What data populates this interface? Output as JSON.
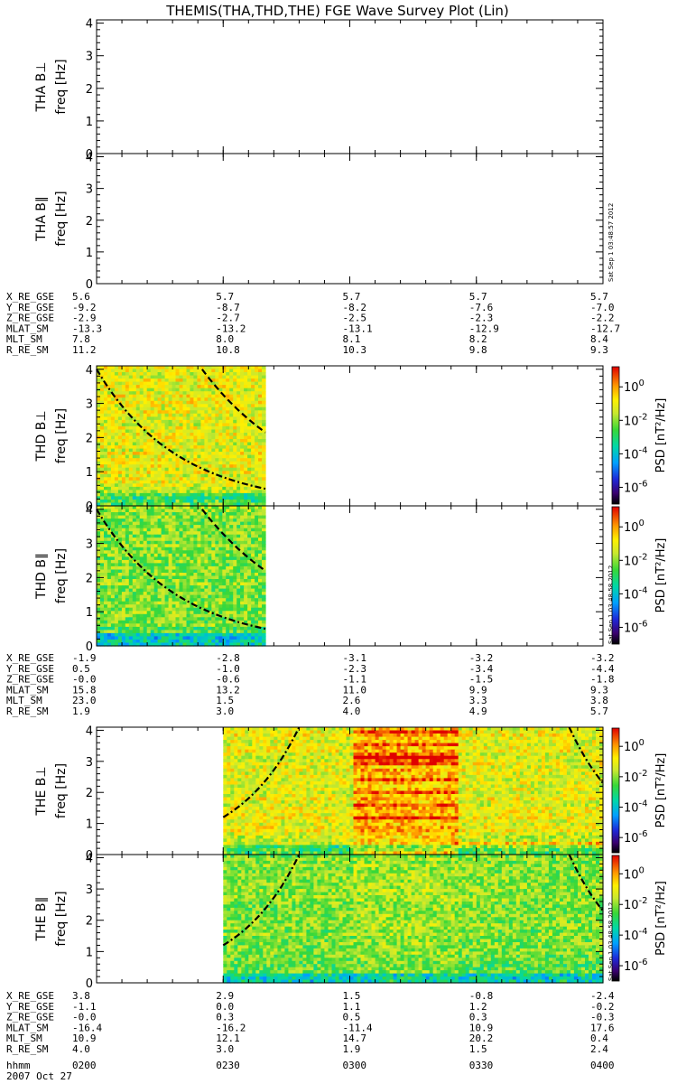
{
  "chart_data": {
    "type": "heatmap",
    "title": "THEMIS(THA,THD,THE) FGE Wave Survey Plot (Lin)",
    "date": "2007 Oct 27",
    "time_axis": {
      "label": "hhmm",
      "ticks": [
        "0200",
        "0230",
        "0300",
        "0330",
        "0400"
      ],
      "minor_ticks_per_major": 5
    },
    "freq_axis": {
      "label": "freq [Hz]",
      "range": [
        0,
        4.1
      ],
      "ticks": [
        "0",
        "1",
        "2",
        "3",
        "4"
      ]
    },
    "colorbar": {
      "label": "PSD [nT²/Hz]",
      "scale": "log",
      "ticks": [
        {
          "base": "10",
          "exp": "0",
          "value": 1.0
        },
        {
          "base": "10",
          "exp": "-2",
          "value": 0.01
        },
        {
          "base": "10",
          "exp": "-4",
          "value": 0.0001
        },
        {
          "base": "10",
          "exp": "-6",
          "value": 1e-06
        }
      ]
    },
    "panels": [
      {
        "id": "tha-bperp",
        "probe_label": "THA B⊥",
        "has_data": false,
        "has_colorbar": false
      },
      {
        "id": "tha-bpar",
        "probe_label": "THA B∥",
        "has_data": false,
        "has_colorbar": false,
        "stamp": "Sat Sep  1 03:48:57 2012"
      },
      {
        "id": "thd-bperp",
        "probe_label": "THD B⊥",
        "has_data": true,
        "has_colorbar": true,
        "data_interval": [
          "0200",
          "0240"
        ],
        "background_level": "high",
        "curves": [
          {
            "style": "dash-dot",
            "x": [
              "0200",
              "0240"
            ],
            "freq": [
              4.0,
              0.5
            ]
          },
          {
            "style": "dashed",
            "x": [
              "0225",
              "0240"
            ],
            "freq": [
              4.0,
              2.15
            ]
          }
        ]
      },
      {
        "id": "thd-bpar",
        "probe_label": "THD B∥",
        "has_data": true,
        "has_colorbar": true,
        "data_interval": [
          "0200",
          "0240"
        ],
        "background_level": "medium",
        "stamp": "Sat Sep  1 03:48:58 2012",
        "curves": [
          {
            "style": "dash-dot",
            "x": [
              "0200",
              "0240"
            ],
            "freq": [
              4.0,
              0.5
            ]
          },
          {
            "style": "dashed",
            "x": [
              "0225",
              "0240"
            ],
            "freq": [
              4.0,
              2.2
            ]
          }
        ]
      },
      {
        "id": "the-bperp",
        "probe_label": "THE B⊥",
        "has_data": true,
        "has_colorbar": true,
        "data_interval": [
          "0230",
          "0400"
        ],
        "background_level": "high",
        "curves": [
          {
            "style": "dash-dot",
            "x": [
              "0230",
              "0248"
            ],
            "freq": [
              1.2,
              4.1
            ]
          },
          {
            "style": "dash-dot",
            "x": [
              "0352",
              "0400"
            ],
            "freq": [
              4.1,
              2.3
            ]
          }
        ]
      },
      {
        "id": "the-bpar",
        "probe_label": "THE B∥",
        "has_data": true,
        "has_colorbar": true,
        "data_interval": [
          "0230",
          "0400"
        ],
        "background_level": "medium",
        "stamp": "Sat Sep  1 03:48:58 2012",
        "curves": [
          {
            "style": "dash-dot",
            "x": [
              "0230",
              "0248"
            ],
            "freq": [
              1.2,
              4.1
            ]
          },
          {
            "style": "dash-dot",
            "x": [
              "0352",
              "0400"
            ],
            "freq": [
              4.1,
              2.3
            ]
          }
        ]
      }
    ],
    "ephemeris_blocks": [
      {
        "probe": "THA",
        "rows": [
          {
            "label": "X_RE_GSE",
            "values": [
              "5.6",
              "5.7",
              "5.7",
              "5.7",
              "5.7"
            ]
          },
          {
            "label": "Y_RE_GSE",
            "values": [
              "-9.2",
              "-8.7",
              "-8.2",
              "-7.6",
              "-7.0"
            ]
          },
          {
            "label": "Z_RE_GSE",
            "values": [
              "-2.9",
              "-2.7",
              "-2.5",
              "-2.3",
              "-2.2"
            ]
          },
          {
            "label": "MLAT_SM",
            "values": [
              "-13.3",
              "-13.2",
              "-13.1",
              "-12.9",
              "-12.7"
            ]
          },
          {
            "label": "MLT_SM",
            "values": [
              "7.8",
              "8.0",
              "8.1",
              "8.2",
              "8.4"
            ]
          },
          {
            "label": "R_RE_SM",
            "values": [
              "11.2",
              "10.8",
              "10.3",
              "9.8",
              "9.3"
            ]
          }
        ]
      },
      {
        "probe": "THD",
        "rows": [
          {
            "label": "X_RE_GSE",
            "values": [
              "-1.9",
              "-2.8",
              "-3.1",
              "-3.2",
              "-3.2"
            ]
          },
          {
            "label": "Y_RE_GSE",
            "values": [
              "0.5",
              "-1.0",
              "-2.3",
              "-3.4",
              "-4.4"
            ]
          },
          {
            "label": "Z_RE_GSE",
            "values": [
              "-0.0",
              "-0.6",
              "-1.1",
              "-1.5",
              "-1.8"
            ]
          },
          {
            "label": "MLAT_SM",
            "values": [
              "15.8",
              "13.2",
              "11.0",
              "9.9",
              "9.3"
            ]
          },
          {
            "label": "MLT_SM",
            "values": [
              "23.0",
              "1.5",
              "2.6",
              "3.3",
              "3.8"
            ]
          },
          {
            "label": "R_RE_SM",
            "values": [
              "1.9",
              "3.0",
              "4.0",
              "4.9",
              "5.7"
            ]
          }
        ]
      },
      {
        "probe": "THE",
        "rows": [
          {
            "label": "X_RE_GSE",
            "values": [
              "3.8",
              "2.9",
              "1.5",
              "-0.8",
              "-2.4"
            ]
          },
          {
            "label": "Y_RE_GSE",
            "values": [
              "-1.1",
              "0.0",
              "1.1",
              "1.2",
              "-0.2"
            ]
          },
          {
            "label": "Z_RE_GSE",
            "values": [
              "-0.0",
              "0.3",
              "0.5",
              "0.3",
              "-0.3"
            ]
          },
          {
            "label": "MLAT_SM",
            "values": [
              "-16.4",
              "-16.2",
              "-11.4",
              "10.9",
              "17.6"
            ]
          },
          {
            "label": "MLT_SM",
            "values": [
              "10.9",
              "12.1",
              "14.7",
              "20.2",
              "0.4"
            ]
          },
          {
            "label": "R_RE_SM",
            "values": [
              "4.0",
              "3.0",
              "1.9",
              "1.5",
              "2.4"
            ]
          }
        ]
      }
    ]
  }
}
